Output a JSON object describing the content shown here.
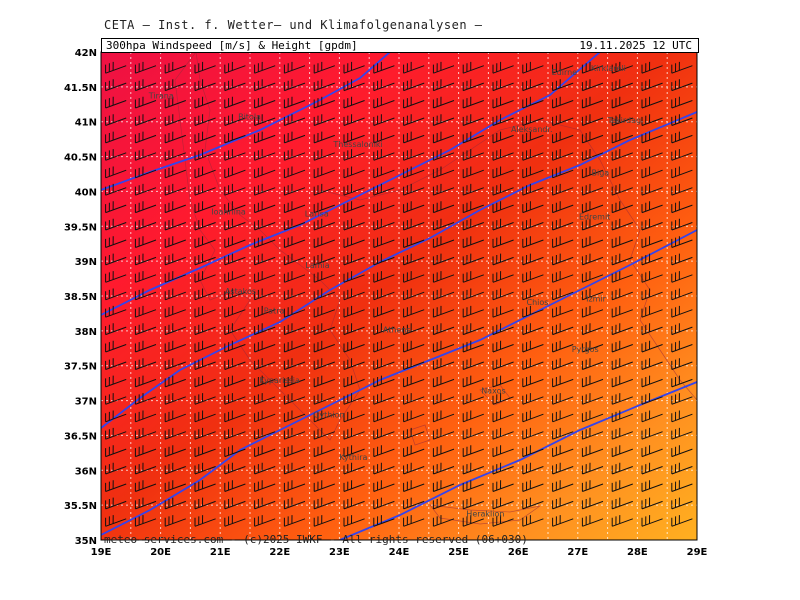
{
  "header": {
    "institute": "CETA — Inst. f. Wetter— und Klimafolgenanalysen —",
    "product": "300hpa Windspeed [m/s] & Height [gpdm]",
    "valid_time": "19.11.2025 12 UTC"
  },
  "footer": {
    "copyright": "meteo-services.com - (c)2025 IWKF - All rights reserved (06+030)"
  },
  "axes": {
    "lon_labels": [
      "19E",
      "20E",
      "21E",
      "22E",
      "23E",
      "24E",
      "25E",
      "26E",
      "27E",
      "28E",
      "29E"
    ],
    "lat_labels": [
      "42N",
      "41.5N",
      "41N",
      "40.5N",
      "40N",
      "39.5N",
      "39N",
      "38.5N",
      "38N",
      "37.5N",
      "37N",
      "36.5N",
      "36N",
      "35.5N",
      "35N"
    ]
  },
  "cities": [
    {
      "name": "Tirana",
      "lon": 19.8,
      "lat": 41.33
    },
    {
      "name": "Bitola",
      "lon": 21.3,
      "lat": 41.03
    },
    {
      "name": "Thessaloniki",
      "lon": 22.9,
      "lat": 40.64
    },
    {
      "name": "Edirne",
      "lon": 26.56,
      "lat": 41.67
    },
    {
      "name": "Aleksandr.",
      "lon": 25.88,
      "lat": 40.85
    },
    {
      "name": "Tekirdag",
      "lon": 27.5,
      "lat": 40.98
    },
    {
      "name": "Kirklareli",
      "lon": 27.22,
      "lat": 41.73
    },
    {
      "name": "Larisa",
      "lon": 22.42,
      "lat": 39.64
    },
    {
      "name": "Ioannina",
      "lon": 20.85,
      "lat": 39.67
    },
    {
      "name": "Biga",
      "lon": 27.23,
      "lat": 40.23
    },
    {
      "name": "Edremit",
      "lon": 27.02,
      "lat": 39.6
    },
    {
      "name": "Lamia",
      "lon": 22.43,
      "lat": 38.9
    },
    {
      "name": "Astakos",
      "lon": 21.08,
      "lat": 38.53
    },
    {
      "name": "Patra",
      "lon": 21.73,
      "lat": 38.25
    },
    {
      "name": "Athens",
      "lon": 23.73,
      "lat": 37.98
    },
    {
      "name": "Chios",
      "lon": 26.14,
      "lat": 38.37
    },
    {
      "name": "Izmir",
      "lon": 27.14,
      "lat": 38.42
    },
    {
      "name": "Pyrgos",
      "lon": 26.9,
      "lat": 37.7
    },
    {
      "name": "Naxos",
      "lon": 25.38,
      "lat": 37.1
    },
    {
      "name": "Kyparissia",
      "lon": 21.66,
      "lat": 37.25
    },
    {
      "name": "Gythion",
      "lon": 22.56,
      "lat": 36.76
    },
    {
      "name": "Kythira",
      "lon": 23.0,
      "lat": 36.15
    },
    {
      "name": "Heraklion",
      "lon": 25.13,
      "lat": 35.34
    }
  ],
  "map_data": {
    "type": "wind-speed-field",
    "lon_range": [
      19,
      29
    ],
    "lat_range": [
      35,
      42
    ],
    "grid_lines": true,
    "height_contour_color": "#3344ee",
    "wind_barb_color": "#111111",
    "grid_color": "#ffffff",
    "speed_colors": {
      "jet_core": "#ee1144",
      "very_high": "#ff1a2e",
      "high": "#f03010",
      "moderate": "#ff6010",
      "low": "#ff9020",
      "lowest": "#ffb020"
    }
  }
}
